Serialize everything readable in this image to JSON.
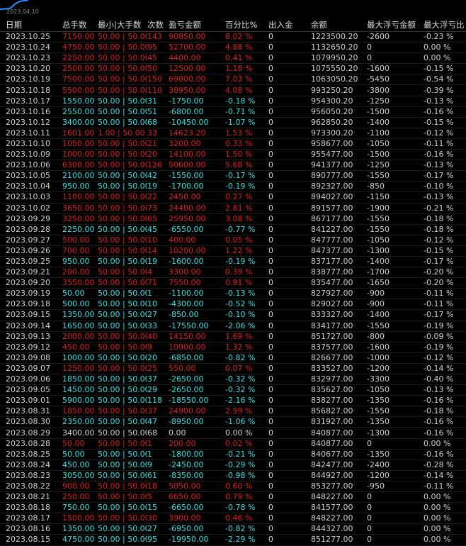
{
  "header_date": "2023.04.10",
  "columns": [
    "日期",
    "总手数",
    "最小|大手数",
    "次数",
    "盈亏金额",
    "百分比%",
    "出入金",
    "余额",
    "最大浮亏金额",
    "最大浮亏比"
  ],
  "rows": [
    {
      "date": "2023.10.25",
      "lots": "7150.00",
      "minmax": "50.00 | 50.00",
      "count": "143",
      "pnl": "90850.00",
      "pct": "8.02 %",
      "io": "0",
      "bal": "1223500.20",
      "maxloss": "-2600",
      "maxpct": "-0.23 %",
      "color": "red"
    },
    {
      "date": "2023.10.24",
      "lots": "4750.00",
      "minmax": "50.00 | 50.00",
      "count": "95",
      "pnl": "52700.00",
      "pct": "4.88 %",
      "io": "0",
      "bal": "1132650.20",
      "maxloss": "0",
      "maxpct": "0.00 %",
      "color": "red"
    },
    {
      "date": "2023.10.23",
      "lots": "2250.00",
      "minmax": "50.00 | 50.00",
      "count": "45",
      "pnl": "4400.00",
      "pct": "0.41 %",
      "io": "0",
      "bal": "1079950.20",
      "maxloss": "0",
      "maxpct": "0.00 %",
      "color": "red"
    },
    {
      "date": "2023.10.20",
      "lots": "2500.00",
      "minmax": "50.00 | 50.00",
      "count": "50",
      "pnl": "12500.00",
      "pct": "1.18 %",
      "io": "0",
      "bal": "1075550.20",
      "maxloss": "-1600",
      "maxpct": "-0.15 %",
      "color": "red"
    },
    {
      "date": "2023.10.19",
      "lots": "7500.00",
      "minmax": "50.00 | 50.00",
      "count": "150",
      "pnl": "69800.00",
      "pct": "7.03 %",
      "io": "0",
      "bal": "1063050.20",
      "maxloss": "-5450",
      "maxpct": "-0.54 %",
      "color": "red"
    },
    {
      "date": "2023.10.18",
      "lots": "5500.00",
      "minmax": "50.00 | 50.00",
      "count": "110",
      "pnl": "38950.00",
      "pct": "4.08 %",
      "io": "0",
      "bal": "993250.20",
      "maxloss": "-3800",
      "maxpct": "-0.39 %",
      "color": "red"
    },
    {
      "date": "2023.10.17",
      "lots": "1550.00",
      "minmax": "50.00 | 50.00",
      "count": "31",
      "pnl": "-1750.00",
      "pct": "-0.18 %",
      "io": "0",
      "bal": "954300.20",
      "maxloss": "-1250",
      "maxpct": "-0.13 %",
      "color": "cyan"
    },
    {
      "date": "2023.10.16",
      "lots": "2550.00",
      "minmax": "50.00 | 50.00",
      "count": "51",
      "pnl": "-6800.00",
      "pct": "-0.71 %",
      "io": "0",
      "bal": "956050.20",
      "maxloss": "-1500",
      "maxpct": "-0.16 %",
      "color": "cyan"
    },
    {
      "date": "2023.10.12",
      "lots": "3400.00",
      "minmax": "50.00 | 50.00",
      "count": "68",
      "pnl": "-10450.00",
      "pct": "-1.07 %",
      "io": "0",
      "bal": "962850.20",
      "maxloss": "-1400",
      "maxpct": "-0.15 %",
      "color": "cyan"
    },
    {
      "date": "2023.10.11",
      "lots": "1601.00",
      "minmax": "1.00 | 50.00",
      "count": "33",
      "pnl": "14623.20",
      "pct": "1.53 %",
      "io": "0",
      "bal": "973300.20",
      "maxloss": "-1100",
      "maxpct": "-0.12 %",
      "color": "red"
    },
    {
      "date": "2023.10.10",
      "lots": "1050.00",
      "minmax": "50.00 | 50.00",
      "count": "21",
      "pnl": "3200.00",
      "pct": "0.33 %",
      "io": "0",
      "bal": "958677.00",
      "maxloss": "-1050",
      "maxpct": "-0.11 %",
      "color": "red"
    },
    {
      "date": "2023.10.09",
      "lots": "1000.00",
      "minmax": "50.00 | 50.00",
      "count": "20",
      "pnl": "14100.00",
      "pct": "1.50 %",
      "io": "0",
      "bal": "955477.00",
      "maxloss": "-1500",
      "maxpct": "-0.16 %",
      "color": "red"
    },
    {
      "date": "2023.10.06",
      "lots": "6300.00",
      "minmax": "50.00 | 50.00",
      "count": "126",
      "pnl": "50600.00",
      "pct": "5.68 %",
      "io": "0",
      "bal": "941377.00",
      "maxloss": "-1250",
      "maxpct": "-0.13 %",
      "color": "red"
    },
    {
      "date": "2023.10.05",
      "lots": "2100.00",
      "minmax": "50.00 | 50.00",
      "count": "42",
      "pnl": "-1550.00",
      "pct": "-0.17 %",
      "io": "0",
      "bal": "890777.00",
      "maxloss": "-1550",
      "maxpct": "-0.17 %",
      "color": "cyan"
    },
    {
      "date": "2023.10.04",
      "lots": "950.00",
      "minmax": "50.00 | 50.00",
      "count": "19",
      "pnl": "-1700.00",
      "pct": "-0.19 %",
      "io": "0",
      "bal": "892327.00",
      "maxloss": "-850",
      "maxpct": "-0.10 %",
      "color": "cyan"
    },
    {
      "date": "2023.10.03",
      "lots": "1100.00",
      "minmax": "50.00 | 50.00",
      "count": "22",
      "pnl": "2450.00",
      "pct": "0.27 %",
      "io": "0",
      "bal": "894027.00",
      "maxloss": "-1150",
      "maxpct": "-0.13 %",
      "color": "red"
    },
    {
      "date": "2023.10.02",
      "lots": "3650.00",
      "minmax": "50.00 | 50.00",
      "count": "73",
      "pnl": "24400.00",
      "pct": "2.81 %",
      "io": "0",
      "bal": "891577.00",
      "maxloss": "-1900",
      "maxpct": "-0.21 %",
      "color": "red"
    },
    {
      "date": "2023.09.29",
      "lots": "3250.00",
      "minmax": "50.00 | 50.00",
      "count": "65",
      "pnl": "25950.00",
      "pct": "3.08 %",
      "io": "0",
      "bal": "867177.00",
      "maxloss": "-1550",
      "maxpct": "-0.18 %",
      "color": "red"
    },
    {
      "date": "2023.09.28",
      "lots": "2250.00",
      "minmax": "50.00 | 50.00",
      "count": "45",
      "pnl": "-6550.00",
      "pct": "-0.77 %",
      "io": "0",
      "bal": "841227.00",
      "maxloss": "-1550",
      "maxpct": "-0.18 %",
      "color": "cyan"
    },
    {
      "date": "2023.09.27",
      "lots": "500.00",
      "minmax": "50.00 | 50.00",
      "count": "10",
      "pnl": "400.00",
      "pct": "0.05 %",
      "io": "0",
      "bal": "847777.00",
      "maxloss": "-1050",
      "maxpct": "-0.12 %",
      "color": "red"
    },
    {
      "date": "2023.09.26",
      "lots": "700.00",
      "minmax": "50.00 | 50.00",
      "count": "14",
      "pnl": "10200.00",
      "pct": "1.22 %",
      "io": "0",
      "bal": "847377.00",
      "maxloss": "-1300",
      "maxpct": "-0.15 %",
      "color": "red"
    },
    {
      "date": "2023.09.25",
      "lots": "950.00",
      "minmax": "50.00 | 50.00",
      "count": "19",
      "pnl": "-1600.00",
      "pct": "-0.19 %",
      "io": "0",
      "bal": "837177.00",
      "maxloss": "-1400",
      "maxpct": "-0.17 %",
      "color": "cyan"
    },
    {
      "date": "2023.09.21",
      "lots": "200.00",
      "minmax": "50.00 | 50.00",
      "count": "4",
      "pnl": "3300.00",
      "pct": "0.39 %",
      "io": "0",
      "bal": "838777.00",
      "maxloss": "-1700",
      "maxpct": "-0.20 %",
      "color": "red"
    },
    {
      "date": "2023.09.20",
      "lots": "3550.00",
      "minmax": "50.00 | 50.00",
      "count": "71",
      "pnl": "7550.00",
      "pct": "0.91 %",
      "io": "0",
      "bal": "835477.00",
      "maxloss": "-1650",
      "maxpct": "-0.20 %",
      "color": "red"
    },
    {
      "date": "2023.09.19",
      "lots": "50.00",
      "minmax": "50.00 | 50.00",
      "count": "1",
      "pnl": "-1100.00",
      "pct": "-0.13 %",
      "io": "0",
      "bal": "827927.00",
      "maxloss": "-900",
      "maxpct": "-0.11 %",
      "color": "cyan"
    },
    {
      "date": "2023.09.18",
      "lots": "500.00",
      "minmax": "50.00 | 50.00",
      "count": "10",
      "pnl": "-4300.00",
      "pct": "-0.52 %",
      "io": "0",
      "bal": "829027.00",
      "maxloss": "-900",
      "maxpct": "-0.11 %",
      "color": "cyan"
    },
    {
      "date": "2023.09.15",
      "lots": "1350.00",
      "minmax": "50.00 | 50.00",
      "count": "27",
      "pnl": "-850.00",
      "pct": "-0.10 %",
      "io": "0",
      "bal": "833327.00",
      "maxloss": "-1400",
      "maxpct": "-0.17 %",
      "color": "cyan"
    },
    {
      "date": "2023.09.14",
      "lots": "1650.00",
      "minmax": "50.00 | 50.00",
      "count": "33",
      "pnl": "-17550.00",
      "pct": "-2.06 %",
      "io": "0",
      "bal": "834177.00",
      "maxloss": "-1550",
      "maxpct": "-0.19 %",
      "color": "cyan"
    },
    {
      "date": "2023.09.13",
      "lots": "2000.00",
      "minmax": "50.00 | 50.00",
      "count": "40",
      "pnl": "14150.00",
      "pct": "1.69 %",
      "io": "0",
      "bal": "851727.00",
      "maxloss": "-800",
      "maxpct": "-0.09 %",
      "color": "red"
    },
    {
      "date": "2023.09.12",
      "lots": "450.00",
      "minmax": "50.00 | 50.00",
      "count": "9",
      "pnl": "10900.00",
      "pct": "1.32 %",
      "io": "0",
      "bal": "837577.00",
      "maxloss": "-1600",
      "maxpct": "-0.19 %",
      "color": "red"
    },
    {
      "date": "2023.09.08",
      "lots": "1000.00",
      "minmax": "50.00 | 50.00",
      "count": "20",
      "pnl": "-6850.00",
      "pct": "-0.82 %",
      "io": "0",
      "bal": "826677.00",
      "maxloss": "-1000",
      "maxpct": "-0.12 %",
      "color": "cyan"
    },
    {
      "date": "2023.09.07",
      "lots": "1250.00",
      "minmax": "50.00 | 50.00",
      "count": "25",
      "pnl": "550.00",
      "pct": "0.07 %",
      "io": "0",
      "bal": "833527.00",
      "maxloss": "-1200",
      "maxpct": "-0.14 %",
      "color": "red"
    },
    {
      "date": "2023.09.06",
      "lots": "1850.00",
      "minmax": "50.00 | 50.00",
      "count": "37",
      "pnl": "-2650.00",
      "pct": "-0.32 %",
      "io": "0",
      "bal": "832977.00",
      "maxloss": "-3300",
      "maxpct": "-0.40 %",
      "color": "cyan"
    },
    {
      "date": "2023.09.05",
      "lots": "1450.00",
      "minmax": "50.00 | 50.00",
      "count": "29",
      "pnl": "-2650.00",
      "pct": "-0.32 %",
      "io": "0",
      "bal": "835627.00",
      "maxloss": "-1050",
      "maxpct": "-0.13 %",
      "color": "cyan"
    },
    {
      "date": "2023.09.01",
      "lots": "5900.00",
      "minmax": "50.00 | 50.00",
      "count": "118",
      "pnl": "-18550.00",
      "pct": "-2.16 %",
      "io": "0",
      "bal": "838277.00",
      "maxloss": "-1350",
      "maxpct": "-0.16 %",
      "color": "cyan"
    },
    {
      "date": "2023.08.31",
      "lots": "1850.00",
      "minmax": "50.00 | 50.00",
      "count": "37",
      "pnl": "24900.00",
      "pct": "2.99 %",
      "io": "0",
      "bal": "856827.00",
      "maxloss": "-1550",
      "maxpct": "-0.18 %",
      "color": "red"
    },
    {
      "date": "2023.08.30",
      "lots": "2350.00",
      "minmax": "50.00 | 50.00",
      "count": "47",
      "pnl": "-8950.00",
      "pct": "-1.06 %",
      "io": "0",
      "bal": "831927.00",
      "maxloss": "-1350",
      "maxpct": "-0.16 %",
      "color": "cyan"
    },
    {
      "date": "2023.08.29",
      "lots": "3400.00",
      "minmax": "50.00 | 50.00",
      "count": "68",
      "pnl": "0.00",
      "pct": "0.00 %",
      "io": "0",
      "bal": "840877.00",
      "maxloss": "-1300",
      "maxpct": "-0.16 %",
      "color": "zero"
    },
    {
      "date": "2023.08.28",
      "lots": "50.00",
      "minmax": "50.00 | 50.00",
      "count": "1",
      "pnl": "200.00",
      "pct": "0.02 %",
      "io": "0",
      "bal": "840877.00",
      "maxloss": "0",
      "maxpct": "0.00 %",
      "color": "red"
    },
    {
      "date": "2023.08.25",
      "lots": "50.00",
      "minmax": "50.00 | 50.00",
      "count": "1",
      "pnl": "-1800.00",
      "pct": "-0.21 %",
      "io": "0",
      "bal": "840677.00",
      "maxloss": "-1350",
      "maxpct": "-0.16 %",
      "color": "cyan"
    },
    {
      "date": "2023.08.24",
      "lots": "450.00",
      "minmax": "50.00 | 50.00",
      "count": "9",
      "pnl": "-2450.00",
      "pct": "-0.29 %",
      "io": "0",
      "bal": "842477.00",
      "maxloss": "-2400",
      "maxpct": "-0.28 %",
      "color": "cyan"
    },
    {
      "date": "2023.08.23",
      "lots": "3050.00",
      "minmax": "50.00 | 50.00",
      "count": "61",
      "pnl": "-8350.00",
      "pct": "-0.98 %",
      "io": "0",
      "bal": "844927.00",
      "maxloss": "-1200",
      "maxpct": "-0.14 %",
      "color": "cyan"
    },
    {
      "date": "2023.08.22",
      "lots": "900.00",
      "minmax": "50.00 | 50.00",
      "count": "18",
      "pnl": "5050.00",
      "pct": "0.60 %",
      "io": "0",
      "bal": "853277.00",
      "maxloss": "-950",
      "maxpct": "-0.11 %",
      "color": "red"
    },
    {
      "date": "2023.08.21",
      "lots": "250.00",
      "minmax": "50.00 | 50.00",
      "count": "5",
      "pnl": "6650.00",
      "pct": "0.79 %",
      "io": "0",
      "bal": "848227.00",
      "maxloss": "0",
      "maxpct": "0.00 %",
      "color": "red"
    },
    {
      "date": "2023.08.18",
      "lots": "750.00",
      "minmax": "50.00 | 50.00",
      "count": "15",
      "pnl": "-6650.00",
      "pct": "-0.78 %",
      "io": "0",
      "bal": "841577.00",
      "maxloss": "0",
      "maxpct": "0.00 %",
      "color": "cyan"
    },
    {
      "date": "2023.08.17",
      "lots": "1500.00",
      "minmax": "50.00 | 50.00",
      "count": "30",
      "pnl": "3900.00",
      "pct": "0.46 %",
      "io": "0",
      "bal": "848227.00",
      "maxloss": "0",
      "maxpct": "0.00 %",
      "color": "red"
    },
    {
      "date": "2023.08.16",
      "lots": "1350.00",
      "minmax": "50.00 | 50.00",
      "count": "27",
      "pnl": "-6950.00",
      "pct": "-0.82 %",
      "io": "0",
      "bal": "844327.00",
      "maxloss": "0",
      "maxpct": "0.00 %",
      "color": "cyan"
    },
    {
      "date": "2023.08.15",
      "lots": "4750.00",
      "minmax": "50.00 | 50.00",
      "count": "95",
      "pnl": "-19950.00",
      "pct": "-2.29 %",
      "io": "0",
      "bal": "851277.00",
      "maxloss": "0",
      "maxpct": "0.00 %",
      "color": "cyan"
    }
  ]
}
